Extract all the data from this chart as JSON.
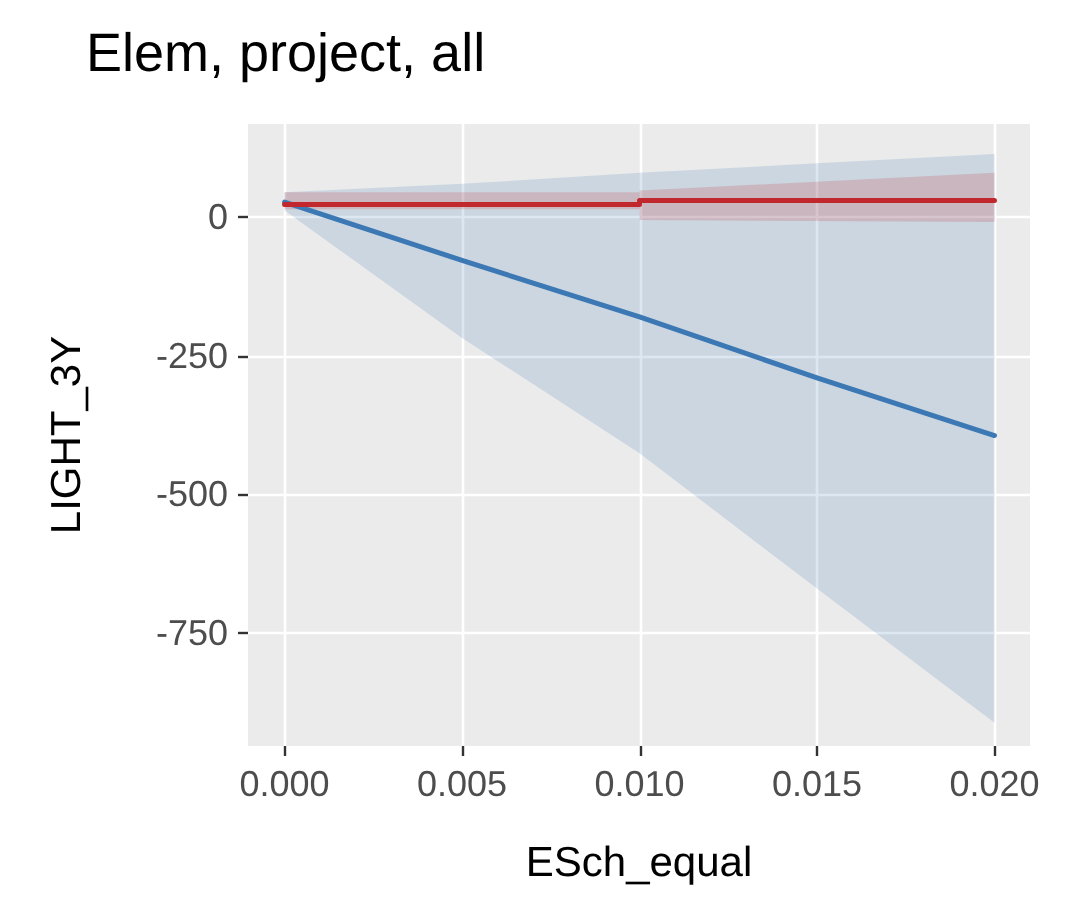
{
  "chart_data": {
    "type": "line",
    "title": "Elem, project, all",
    "xlabel": "ESch_equal",
    "ylabel": "LIGHT_3Y",
    "xlim": [
      -0.00103,
      0.021
    ],
    "xticks": [
      {
        "value": 0,
        "label": "0.000"
      },
      {
        "value": 0.005,
        "label": "0.005"
      },
      {
        "value": 0.01,
        "label": "0.010"
      },
      {
        "value": 0.015,
        "label": "0.015"
      },
      {
        "value": 0.02,
        "label": "0.020"
      }
    ],
    "ylim": [
      -954,
      168
    ],
    "yticks": [
      -750,
      -500,
      -250,
      0
    ],
    "grid": true,
    "marker": "none",
    "line_style": "solid",
    "series": [
      {
        "color": "#3c78b4",
        "x": [
          0,
          0.005,
          0.01,
          0.015,
          0.02
        ],
        "values": [
          27,
          -78,
          -180,
          -290,
          -394
        ],
        "lower": [
          12,
          -218,
          -426,
          -670,
          -912
        ],
        "upper": [
          45,
          60,
          80,
          97,
          114
        ]
      },
      {
        "color": "#c0282e",
        "x": [
          0,
          0.01,
          0.01,
          0.02
        ],
        "values": [
          23,
          23,
          30,
          30
        ],
        "lower": [
          14,
          14,
          -5,
          -9
        ],
        "upper": [
          45,
          45,
          48,
          80
        ]
      }
    ]
  }
}
